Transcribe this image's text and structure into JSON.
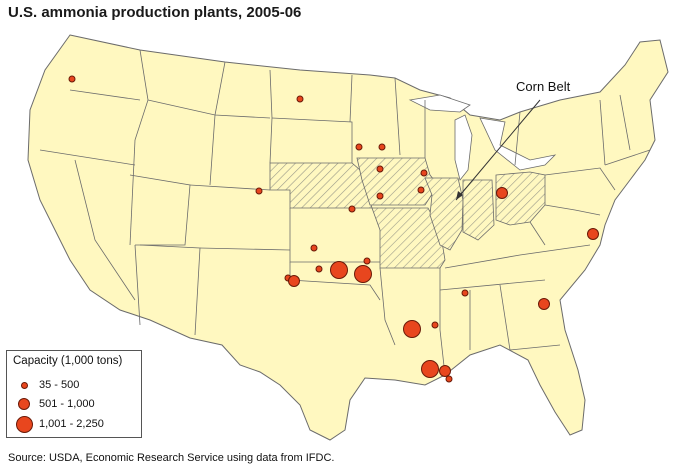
{
  "title": "U.S. ammonia production plants, 2005-06",
  "callout_label": "Corn Belt",
  "source": "Source:  USDA, Economic Research Service using data from IFDC.",
  "colors": {
    "land": "#fff8c0",
    "border": "#6b6b6b",
    "plant_fill": "#e8461e",
    "plant_stroke": "#6a1a08",
    "hatch": "#9a9a8a"
  },
  "legend": {
    "title": "Capacity (1,000 tons)",
    "items": [
      {
        "label": "35 - 500",
        "size_class": "small"
      },
      {
        "label": "501 - 1,000",
        "size_class": "medium"
      },
      {
        "label": "1,001 - 2,250",
        "size_class": "large"
      }
    ]
  },
  "corn_belt_states": [
    "Nebraska",
    "Iowa",
    "Missouri",
    "Illinois",
    "Indiana",
    "Ohio"
  ],
  "plants": [
    {
      "state": "Washington",
      "size_class": "small"
    },
    {
      "state": "North Dakota",
      "size_class": "small"
    },
    {
      "state": "Nebraska",
      "size_class": "small"
    },
    {
      "state": "Nebraska",
      "size_class": "small"
    },
    {
      "state": "Iowa",
      "size_class": "small"
    },
    {
      "state": "Iowa",
      "size_class": "small"
    },
    {
      "state": "Iowa",
      "size_class": "small"
    },
    {
      "state": "Iowa",
      "size_class": "small"
    },
    {
      "state": "Iowa",
      "size_class": "small"
    },
    {
      "state": "Kansas",
      "size_class": "small"
    },
    {
      "state": "Kansas",
      "size_class": "small"
    },
    {
      "state": "Kansas",
      "size_class": "small"
    },
    {
      "state": "Oklahoma",
      "size_class": "small"
    },
    {
      "state": "Oklahoma",
      "size_class": "medium"
    },
    {
      "state": "Oklahoma",
      "size_class": "small"
    },
    {
      "state": "Oklahoma",
      "size_class": "large"
    },
    {
      "state": "Oklahoma",
      "size_class": "large"
    },
    {
      "state": "Oklahoma",
      "size_class": "small"
    },
    {
      "state": "Ohio",
      "size_class": "medium"
    },
    {
      "state": "Virginia",
      "size_class": "medium"
    },
    {
      "state": "Georgia",
      "size_class": "medium"
    },
    {
      "state": "Alabama",
      "size_class": "small"
    },
    {
      "state": "Mississippi",
      "size_class": "small"
    },
    {
      "state": "Louisiana",
      "size_class": "large"
    },
    {
      "state": "Louisiana",
      "size_class": "large"
    },
    {
      "state": "Louisiana",
      "size_class": "medium"
    },
    {
      "state": "Louisiana",
      "size_class": "small"
    }
  ]
}
